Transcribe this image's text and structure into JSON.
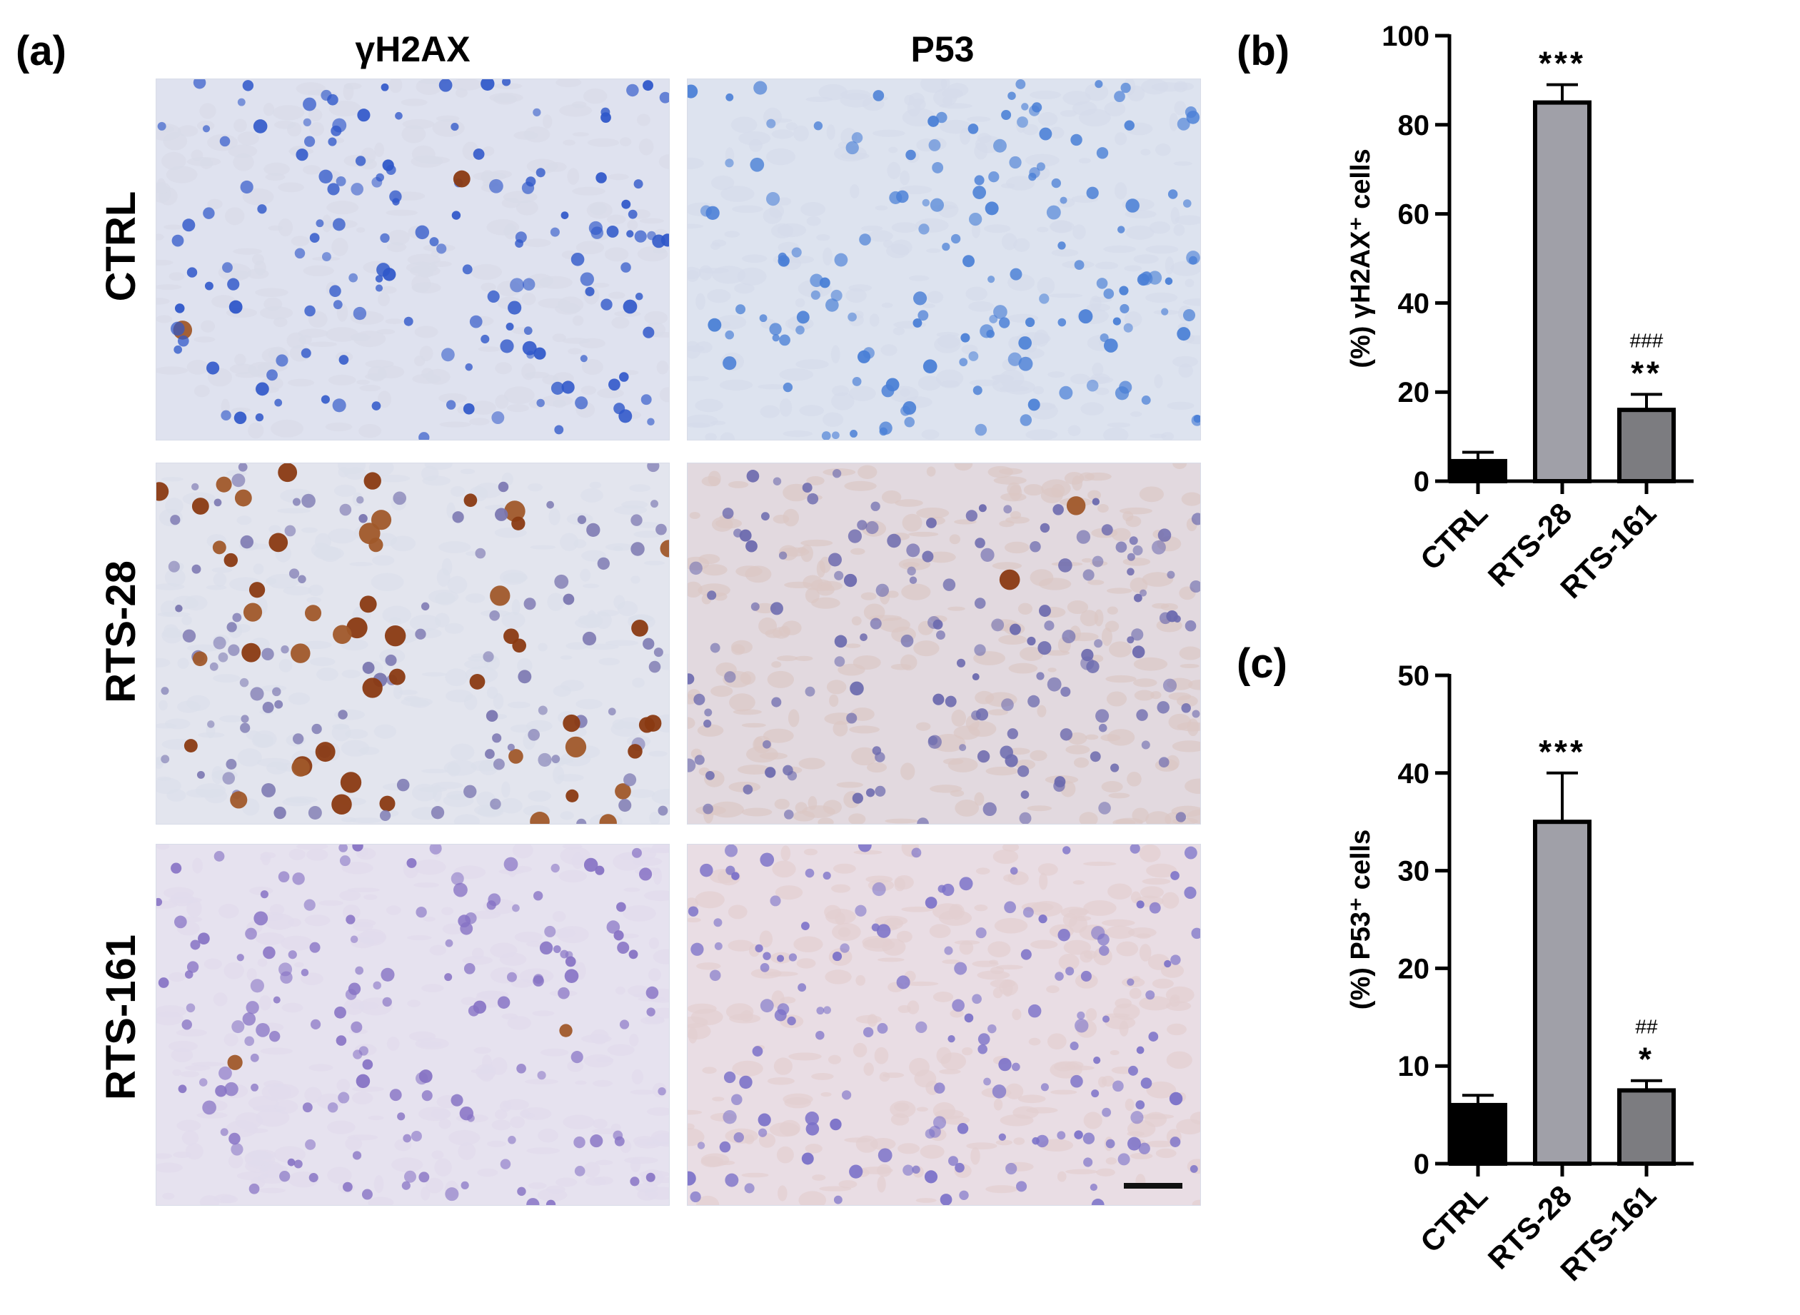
{
  "panel_a": {
    "label": "(a)",
    "column_titles": [
      "γH2AX",
      "P53"
    ],
    "row_labels": [
      "CTRL",
      "RTS-28",
      "RTS-161"
    ],
    "images": [
      {
        "row": "CTRL",
        "col": "γH2AX",
        "bg": "#dfe2ef",
        "nuclei": "#2f57c9",
        "brown": 0.02,
        "cyto": "#d8dbe8"
      },
      {
        "row": "CTRL",
        "col": "P53",
        "bg": "#dde3ef",
        "nuclei": "#4a7fd6",
        "brown": 0.0,
        "cyto": "#d5dceb"
      },
      {
        "row": "RTS-28",
        "col": "γH2AX",
        "bg": "#e3e5ee",
        "nuclei": "#7a76b0",
        "brown": 0.3,
        "cyto": "#dcdfeb"
      },
      {
        "row": "RTS-28",
        "col": "P53",
        "bg": "#e2d9df",
        "nuclei": "#6c6aae",
        "brown": 0.02,
        "cyto": "#dcc8c4"
      },
      {
        "row": "RTS-161",
        "col": "γH2AX",
        "bg": "#e6e2ef",
        "nuclei": "#8672c4",
        "brown": 0.04,
        "cyto": "#e1dbec"
      },
      {
        "row": "RTS-161",
        "col": "P53",
        "bg": "#e9dde4",
        "nuclei": "#7a70c8",
        "brown": 0.0,
        "cyto": "#e2cfd0"
      }
    ]
  },
  "chart_data": [
    {
      "type": "bar",
      "panel_label": "(b)",
      "categories": [
        "CTRL",
        "RTS-28",
        "RTS-161"
      ],
      "values": [
        4.5,
        85,
        16
      ],
      "errors": [
        2,
        4,
        3.5
      ],
      "bar_colors": [
        "#000000",
        "#a0a0a8",
        "#7c7c80"
      ],
      "annotations": [
        "",
        "***",
        "**"
      ],
      "hash_annotations": [
        "",
        "",
        "###"
      ],
      "ylabel": "(%) γH2AX⁺ cells",
      "xlabel": "",
      "ylim": [
        0,
        100
      ],
      "yticks": [
        0,
        20,
        40,
        60,
        80,
        100
      ],
      "grid": false
    },
    {
      "type": "bar",
      "panel_label": "(c)",
      "categories": [
        "CTRL",
        "RTS-28",
        "RTS-161"
      ],
      "values": [
        6,
        35,
        7.5
      ],
      "errors": [
        1,
        5,
        1
      ],
      "bar_colors": [
        "#000000",
        "#a0a0a8",
        "#7c7c80"
      ],
      "annotations": [
        "",
        "***",
        "*"
      ],
      "hash_annotations": [
        "",
        "",
        "##"
      ],
      "ylabel": "(%) P53⁺ cells",
      "xlabel": "",
      "ylim": [
        0,
        50
      ],
      "yticks": [
        0,
        10,
        20,
        30,
        40,
        50
      ],
      "grid": false
    }
  ]
}
